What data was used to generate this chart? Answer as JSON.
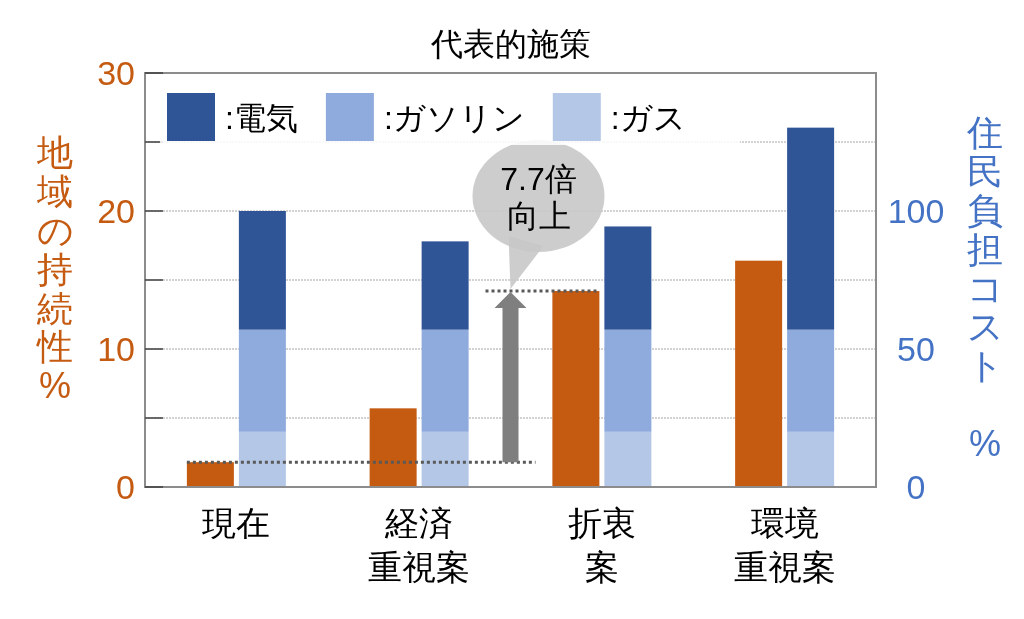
{
  "chart_data": {
    "type": "bar",
    "title": "代表的施策",
    "categories": [
      "現在",
      "経済重視案",
      "折衷案",
      "環境重視案"
    ],
    "ylabel": "地域の持続性%",
    "y2label": "住民負担コスト %",
    "series": [
      {
        "color": "#c55a11",
        "values": [
          1.8,
          5.7,
          14.2,
          16.4
        ]
      },
      {
        "name": ":ガス",
        "color": "#b4c7e7",
        "axis": "y2",
        "values": [
          20,
          20,
          20,
          20
        ]
      },
      {
        "name": ":ガソリン",
        "color": "#8faadc",
        "axis": "y2",
        "values": [
          37,
          37,
          37,
          37
        ]
      },
      {
        "name": ":電気",
        "color": "#2f5597",
        "axis": "y2",
        "values": [
          43,
          32,
          37.4,
          73.2
        ]
      }
    ],
    "stacked": true,
    "ylim": [
      0,
      30
    ],
    "yticks": [
      0,
      {
        "value": 5,
        "label": null
      },
      10,
      {
        "value": 15,
        "label": null
      },
      20,
      {
        "value": 25,
        "label": null
      },
      30
    ],
    "y2lim": [
      0,
      150
    ],
    "y2ticks": [
      0,
      50,
      100
    ],
    "grid": "y",
    "legend": "top left",
    "ref_lines": [
      {
        "axis": "y",
        "value": 1.8,
        "color": "#595959",
        "line_style": "dotted"
      },
      {
        "axis": "y",
        "value": 14.2,
        "color": "#595959",
        "line_style": "dotted"
      }
    ],
    "annotations": [
      "7.7倍向上"
    ]
  }
}
